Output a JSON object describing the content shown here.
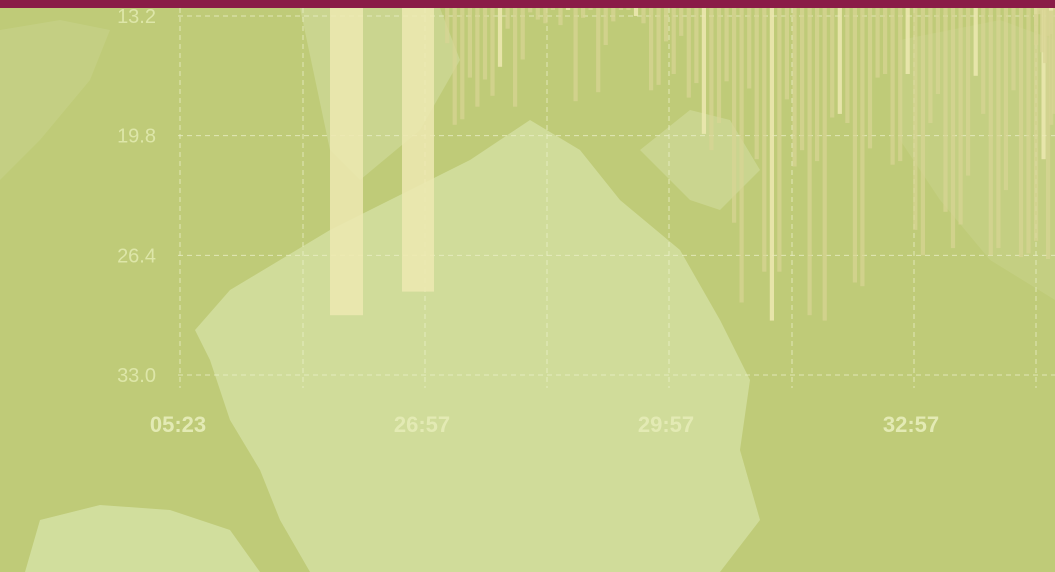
{
  "chart_data": {
    "type": "bar",
    "orientation": "vertical-drop",
    "title": "",
    "xlabel": "",
    "ylabel": "",
    "y_axis_inverted": true,
    "ylim": [
      12.2,
      33.0
    ],
    "y_ticks": [
      "13.2",
      "19.8",
      "26.4",
      "33.0"
    ],
    "x_ticks": [
      "05:23",
      "26:57",
      "29:57",
      "32:57"
    ],
    "grid": true,
    "colors": {
      "accent_bar": "#8a1c47",
      "background": "#bfcb78",
      "bar": "#ede9b2",
      "bar_muted": "#d8d494",
      "grid": "#e9efc6"
    },
    "series": [
      {
        "values": [
          29.7,
          28.4,
          14.7,
          19.2,
          18.9,
          16.6,
          18.2,
          16.7,
          17.6,
          16.0,
          13.9,
          18.2,
          15.6,
          13.0,
          13.4,
          13.6,
          12.7,
          13.7,
          12.6,
          17.9,
          13.3,
          12.5,
          17.4,
          14.8,
          13.5,
          12.8,
          12.8,
          13.2,
          13.6,
          17.3,
          17.0,
          14.6,
          16.4,
          14.3,
          17.7,
          16.9,
          19.7,
          20.6,
          19.1,
          16.8,
          24.6,
          29.0,
          17.2,
          21.1,
          27.3,
          30.0,
          27.3,
          17.8,
          21.5,
          20.6,
          29.7,
          21.2,
          30.0,
          18.8,
          18.6,
          19.1,
          27.9,
          28.1,
          20.5,
          16.6,
          16.4,
          21.4,
          21.2,
          16.4,
          25.0,
          26.4,
          19.1,
          17.5,
          24.0,
          26.0,
          24.7,
          22.0,
          16.5,
          18.6,
          26.4,
          26.0,
          22.8,
          17.3,
          26.5,
          26.3,
          25.6,
          21.1,
          19.2,
          13.7,
          18.6,
          14.2,
          26.6,
          15.8,
          15.2,
          12.9,
          13.1,
          12.8,
          13.6,
          14.3,
          12.6,
          12.7,
          13.1,
          14.8,
          12.5,
          12.9
        ]
      }
    ]
  }
}
